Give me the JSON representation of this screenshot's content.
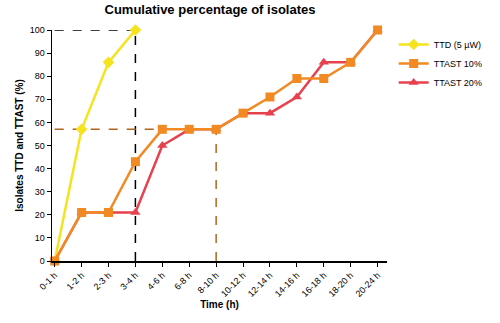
{
  "chart_data": {
    "type": "line",
    "title": "Cumulative percentage of isolates",
    "x_label": "Time (h)",
    "y_label": "Isolates TTD and TTAST (%)",
    "categories": [
      "0-1 h",
      "1-2 h",
      "2-3 h",
      "3-4 h",
      "4-6 h",
      "6-8 h",
      "8-10 h",
      "10-12 h",
      "12-14 h",
      "14-16 h",
      "16-18 h",
      "18-20 h",
      "20-24 h"
    ],
    "series": [
      {
        "name": "TTD (5 µW)",
        "color": "#f5e31e",
        "marker": "diamond",
        "values": [
          0,
          57,
          86,
          100,
          null,
          null,
          null,
          null,
          null,
          null,
          null,
          null,
          null
        ]
      },
      {
        "name": "TTAST 20%",
        "color": "#e8414e",
        "marker": "triangle-up",
        "values": [
          0,
          21,
          21,
          21,
          50,
          57,
          57,
          64,
          64,
          71,
          86,
          86,
          100
        ]
      },
      {
        "name": "TTAST 10%",
        "color": "#f28a24",
        "marker": "square",
        "values": [
          0,
          21,
          21,
          43,
          57,
          57,
          57,
          64,
          71,
          79,
          79,
          86,
          100
        ]
      }
    ],
    "reference_lines": [
      {
        "x": "3-4 h",
        "y": 100,
        "color": "#000000",
        "line_style": "dash"
      },
      {
        "x": "8-10 h",
        "y": 57,
        "color": "#b0661a",
        "line_style": "dash"
      }
    ],
    "ylim": [
      0,
      100
    ],
    "yticks": [
      0,
      10,
      20,
      30,
      40,
      50,
      60,
      70,
      80,
      90,
      100
    ],
    "grid": false,
    "legend": "right"
  }
}
